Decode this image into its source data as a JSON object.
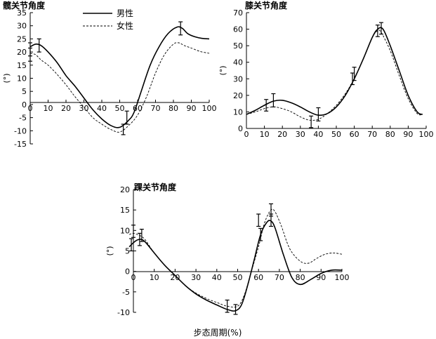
{
  "caption": "步态周期(%)",
  "chart_data": [
    {
      "type": "line",
      "title": "髋关节角度",
      "ylabel": "(°)",
      "xlim": [
        0,
        100
      ],
      "ylim": [
        -15,
        35
      ],
      "xticks": [
        0,
        10,
        20,
        30,
        40,
        50,
        60,
        70,
        80,
        90,
        100
      ],
      "yticks": [
        -15,
        -10,
        -5,
        0,
        5,
        10,
        15,
        20,
        25,
        30,
        35
      ],
      "legend": "top-left",
      "series": [
        {
          "name": "男性",
          "style": "solid",
          "color": "#000000",
          "x": [
            0,
            3,
            6,
            10,
            15,
            20,
            25,
            30,
            35,
            40,
            45,
            50,
            55,
            58,
            62,
            67,
            72,
            77,
            82,
            85,
            88,
            92,
            96,
            100
          ],
          "y": [
            22,
            23,
            22.5,
            20,
            16,
            11,
            7,
            2.5,
            -2,
            -5.5,
            -8,
            -8.7,
            -6,
            -3,
            5,
            15,
            22,
            27,
            29.5,
            29,
            27,
            25.8,
            25.2,
            25
          ],
          "error_bars": [
            {
              "x": 0,
              "y": 21,
              "err": 2.5
            },
            {
              "x": 5,
              "y": 22.5,
              "err": 2.5
            },
            {
              "x": 54,
              "y": -5,
              "err": 2.5
            },
            {
              "x": 84,
              "y": 29,
              "err": 2.5
            }
          ]
        },
        {
          "name": "女性",
          "style": "dashed",
          "color": "#000000",
          "x": [
            0,
            3,
            6,
            10,
            15,
            20,
            25,
            30,
            35,
            40,
            45,
            50,
            55,
            60,
            65,
            70,
            75,
            80,
            83,
            86,
            90,
            95,
            100
          ],
          "y": [
            19.5,
            19,
            17,
            15,
            11.5,
            7.5,
            3,
            -1,
            -5,
            -7.5,
            -9.5,
            -10.5,
            -8,
            -4,
            3,
            12,
            19,
            23,
            23.5,
            22.5,
            21.5,
            20.2,
            19.5
          ],
          "error_bars": [
            {
              "x": 0,
              "y": 19,
              "err": 2.5
            },
            {
              "x": 52,
              "y": -9.5,
              "err": 2
            }
          ]
        }
      ]
    },
    {
      "type": "line",
      "title": "膝关节角度",
      "ylabel": "(°)",
      "xlim": [
        0,
        100
      ],
      "ylim": [
        0,
        70
      ],
      "xticks": [
        0,
        10,
        20,
        30,
        40,
        50,
        60,
        70,
        80,
        90,
        100
      ],
      "yticks": [
        0,
        10,
        20,
        30,
        40,
        50,
        60,
        70
      ],
      "series": [
        {
          "name": "男性",
          "style": "solid",
          "color": "#000000",
          "x": [
            0,
            5,
            10,
            15,
            20,
            25,
            30,
            35,
            40,
            45,
            50,
            55,
            60,
            65,
            70,
            73,
            76,
            80,
            85,
            90,
            95,
            98
          ],
          "y": [
            8.5,
            11,
            14,
            16.5,
            17,
            15.5,
            13,
            10,
            8,
            9,
            13,
            20,
            30,
            42,
            55,
            60,
            60,
            50,
            35,
            20,
            10,
            8.5
          ],
          "error_bars": [
            {
              "x": 15,
              "y": 17,
              "err": 4
            },
            {
              "x": 40,
              "y": 8.5,
              "err": 4
            },
            {
              "x": 60,
              "y": 33,
              "err": 4
            },
            {
              "x": 75,
              "y": 60.5,
              "err": 3.5
            }
          ]
        },
        {
          "name": "女性",
          "style": "dashed",
          "color": "#000000",
          "x": [
            0,
            5,
            10,
            15,
            20,
            25,
            30,
            35,
            40,
            45,
            50,
            55,
            60,
            65,
            70,
            73,
            75,
            80,
            85,
            90,
            95,
            98
          ],
          "y": [
            8.5,
            10,
            12,
            13,
            12,
            10,
            7,
            5,
            5.5,
            9,
            14,
            21,
            30,
            42,
            55,
            59,
            58,
            47,
            32,
            18,
            9,
            8.5
          ],
          "error_bars": [
            {
              "x": 11,
              "y": 14,
              "err": 3.5
            },
            {
              "x": 36,
              "y": 4,
              "err": 3.5
            },
            {
              "x": 59,
              "y": 30,
              "err": 3.5
            },
            {
              "x": 73,
              "y": 59,
              "err": 3.5
            }
          ]
        }
      ]
    },
    {
      "type": "line",
      "title": "踝关节角度",
      "ylabel": "(°)",
      "xlim": [
        0,
        100
      ],
      "ylim": [
        -10,
        20
      ],
      "xticks": [
        0,
        10,
        20,
        30,
        40,
        50,
        60,
        70,
        80,
        90,
        100
      ],
      "yticks": [
        -10,
        -5,
        0,
        5,
        10,
        15,
        20
      ],
      "series": [
        {
          "name": "男性",
          "style": "solid",
          "color": "#000000",
          "x": [
            -2,
            0,
            2,
            4,
            6,
            10,
            15,
            20,
            25,
            30,
            35,
            40,
            45,
            49,
            52,
            55,
            58,
            61,
            64,
            66,
            68,
            72,
            76,
            80,
            85,
            90,
            95,
            100
          ],
          "y": [
            6,
            7,
            7.7,
            7.8,
            7,
            4.5,
            1.5,
            -1,
            -3.5,
            -5.5,
            -7,
            -8.2,
            -9.3,
            -9.6,
            -8,
            -3,
            3,
            9,
            12,
            12.3,
            10.5,
            4,
            -1.5,
            -3.2,
            -2,
            -0.5,
            0.3,
            0.3
          ],
          "error_bars": [
            {
              "x": -1,
              "y": 6.5,
              "err": 1.5
            },
            {
              "x": 3,
              "y": 7.8,
              "err": 1.5
            },
            {
              "x": 45,
              "y": -8.5,
              "err": 1.5
            },
            {
              "x": 49,
              "y": -9.3,
              "err": 1.2
            },
            {
              "x": 61,
              "y": 9,
              "err": 1.5
            },
            {
              "x": 66,
              "y": 12.5,
              "err": 1.5
            }
          ]
        },
        {
          "name": "女性",
          "style": "dashed",
          "color": "#000000",
          "x": [
            -2,
            0,
            2,
            4,
            6,
            10,
            15,
            20,
            25,
            30,
            35,
            40,
            45,
            50,
            53,
            56,
            60,
            63,
            66,
            68,
            71,
            75,
            80,
            84,
            88,
            92,
            96,
            100
          ],
          "y": [
            9,
            9.3,
            9,
            8.5,
            7.5,
            4.5,
            1.5,
            -1,
            -3.5,
            -5.3,
            -6.6,
            -7.6,
            -8.5,
            -8.5,
            -6,
            -1,
            6,
            12,
            15,
            14.5,
            11,
            5.5,
            2.5,
            2,
            3.2,
            4.2,
            4.5,
            4.2
          ],
          "error_bars": [
            {
              "x": 0,
              "y": 9.8,
              "err": 1.5
            },
            {
              "x": 4,
              "y": 8.8,
              "err": 1.5
            },
            {
              "x": 60,
              "y": 12.5,
              "err": 1.5
            },
            {
              "x": 66,
              "y": 15,
              "err": 1.5
            }
          ]
        }
      ]
    }
  ]
}
